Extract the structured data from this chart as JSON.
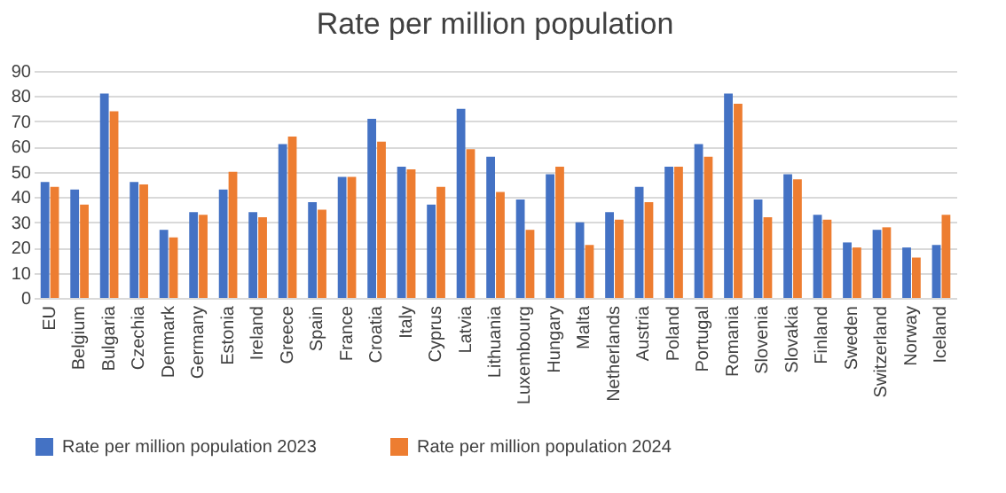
{
  "chart_data": {
    "type": "bar",
    "title": "Rate per million population",
    "categories": [
      "EU",
      "Belgium",
      "Bulgaria",
      "Czechia",
      "Denmark",
      "Germany",
      "Estonia",
      "Ireland",
      "Greece",
      "Spain",
      "France",
      "Croatia",
      "Italy",
      "Cyprus",
      "Latvia",
      "Lithuania",
      "Luxembourg",
      "Hungary",
      "Malta",
      "Netherlands",
      "Austria",
      "Poland",
      "Portugal",
      "Romania",
      "Slovenia",
      "Slovakia",
      "Finland",
      "Sweden",
      "Switzerland",
      "Norway",
      "Iceland"
    ],
    "series": [
      {
        "name": "Rate per million population 2023",
        "color": "#4472c4",
        "values": [
          46,
          43,
          81,
          46,
          27,
          34,
          43,
          34,
          61,
          38,
          48,
          71,
          52,
          37,
          75,
          56,
          39,
          49,
          30,
          34,
          44,
          52,
          61,
          81,
          39,
          49,
          33,
          22,
          27,
          20,
          21
        ]
      },
      {
        "name": "Rate per million population 2024",
        "color": "#ed7d31",
        "values": [
          44,
          37,
          74,
          45,
          24,
          33,
          50,
          32,
          64,
          35,
          48,
          62,
          51,
          44,
          59,
          42,
          27,
          52,
          21,
          31,
          38,
          52,
          56,
          77,
          32,
          47,
          31,
          20,
          28,
          16,
          33
        ]
      }
    ],
    "ylim": [
      0,
      90
    ],
    "yticks": [
      0,
      10,
      20,
      30,
      40,
      50,
      60,
      70,
      80,
      90
    ],
    "grid": "y",
    "legend": "bottom"
  }
}
